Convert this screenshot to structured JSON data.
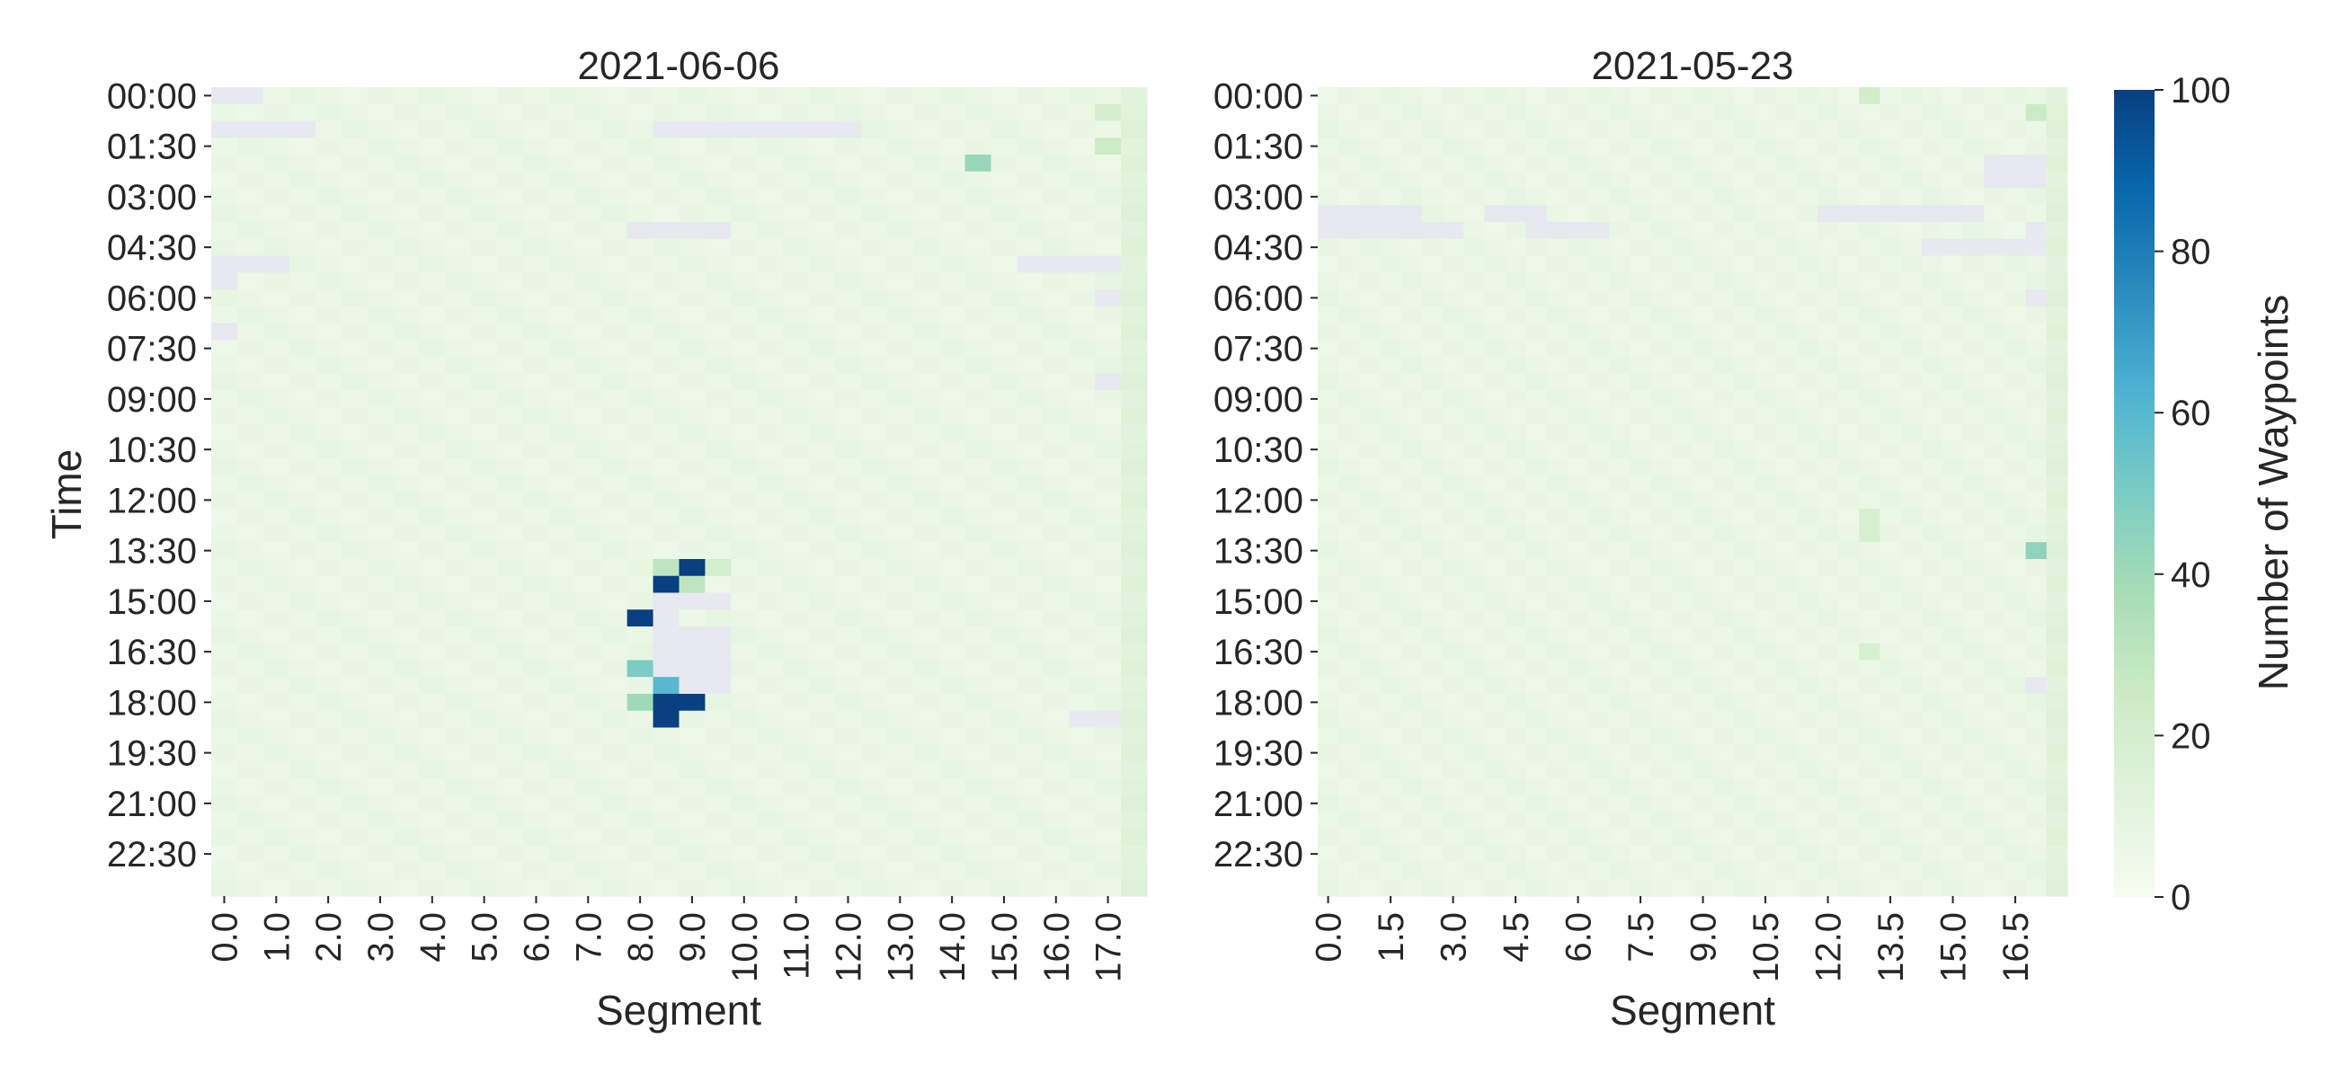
{
  "chart_data": [
    {
      "type": "heatmap",
      "title": "2021-06-06",
      "xlabel": "Segment",
      "ylabel": "Time",
      "x_tick_labels": [
        "0.0",
        "1.0",
        "2.0",
        "3.0",
        "4.0",
        "5.0",
        "6.0",
        "7.0",
        "8.0",
        "9.0",
        "10.0",
        "11.0",
        "12.0",
        "13.0",
        "14.0",
        "15.0",
        "16.0",
        "17.0"
      ],
      "y_tick_labels": [
        "00:00",
        "01:30",
        "03:00",
        "04:30",
        "06:00",
        "07:30",
        "09:00",
        "10:30",
        "12:00",
        "13:30",
        "15:00",
        "16:30",
        "18:00",
        "19:30",
        "21:00",
        "22:30"
      ],
      "x_range": [
        0.0,
        17.5
      ],
      "x_step": 0.5,
      "y_step_minutes": 30,
      "rows": 48,
      "background_level": 7,
      "empty_cells": [
        {
          "row": 0,
          "cols": [
            0.0,
            0.5
          ]
        },
        {
          "row": 2,
          "cols": [
            0.0,
            1.5
          ]
        },
        {
          "row": 2,
          "cols": [
            8.5,
            12.0
          ]
        },
        {
          "row": 8,
          "cols": [
            8.0,
            9.5
          ]
        },
        {
          "row": 10,
          "cols": [
            0.0,
            1.0
          ]
        },
        {
          "row": 10,
          "cols": [
            15.5,
            17.0
          ]
        },
        {
          "row": 11,
          "cols": [
            0.0,
            0.0
          ]
        },
        {
          "row": 12,
          "cols": [
            17.0,
            17.0
          ]
        },
        {
          "row": 14,
          "cols": [
            0.0,
            0.0
          ]
        },
        {
          "row": 17,
          "cols": [
            17.0,
            17.0
          ]
        },
        {
          "row": 30,
          "cols": [
            8.5,
            9.5
          ]
        },
        {
          "row": 31,
          "cols": [
            8.5,
            8.5
          ]
        },
        {
          "row": 32,
          "cols": [
            8.5,
            9.5
          ]
        },
        {
          "row": 33,
          "cols": [
            8.5,
            9.5
          ]
        },
        {
          "row": 34,
          "cols": [
            8.5,
            9.5
          ]
        },
        {
          "row": 35,
          "cols": [
            8.5,
            9.5
          ]
        },
        {
          "row": 37,
          "cols": [
            16.5,
            17.0
          ]
        }
      ],
      "highlighted_cells": [
        {
          "row": 1,
          "col": 17.0,
          "value": 20
        },
        {
          "row": 3,
          "col": 17.0,
          "value": 25
        },
        {
          "row": 4,
          "col": 14.5,
          "value": 42
        },
        {
          "row": 28,
          "col": 8.5,
          "value": 30
        },
        {
          "row": 28,
          "col": 9.0,
          "value": 100
        },
        {
          "row": 28,
          "col": 9.5,
          "value": 20
        },
        {
          "row": 29,
          "col": 8.5,
          "value": 100
        },
        {
          "row": 29,
          "col": 9.0,
          "value": 30
        },
        {
          "row": 31,
          "col": 8.0,
          "value": 100
        },
        {
          "row": 34,
          "col": 8.0,
          "value": 50
        },
        {
          "row": 35,
          "col": 8.5,
          "value": 60
        },
        {
          "row": 36,
          "col": 8.0,
          "value": 40
        },
        {
          "row": 36,
          "col": 8.5,
          "value": 100
        },
        {
          "row": 36,
          "col": 9.0,
          "value": 100
        },
        {
          "row": 37,
          "col": 8.5,
          "value": 100
        }
      ]
    },
    {
      "type": "heatmap",
      "title": "2021-05-23",
      "xlabel": "Segment",
      "ylabel": "",
      "x_tick_labels": [
        "0.0",
        "1.5",
        "3.0",
        "4.5",
        "6.0",
        "7.5",
        "9.0",
        "10.5",
        "12.0",
        "13.5",
        "15.0",
        "16.5"
      ],
      "y_tick_labels": [
        "00:00",
        "01:30",
        "03:00",
        "04:30",
        "06:00",
        "07:30",
        "09:00",
        "10:30",
        "12:00",
        "13:30",
        "15:00",
        "16:30",
        "18:00",
        "19:30",
        "21:00",
        "22:30"
      ],
      "x_range": [
        0.0,
        17.5
      ],
      "x_step": 0.5,
      "y_step_minutes": 30,
      "rows": 48,
      "background_level": 7,
      "empty_cells": [
        {
          "row": 4,
          "cols": [
            16.0,
            17.0
          ]
        },
        {
          "row": 5,
          "cols": [
            16.0,
            17.0
          ]
        },
        {
          "row": 7,
          "cols": [
            0.0,
            2.0
          ]
        },
        {
          "row": 7,
          "cols": [
            4.0,
            5.0
          ]
        },
        {
          "row": 7,
          "cols": [
            12.0,
            15.5
          ]
        },
        {
          "row": 8,
          "cols": [
            0.0,
            3.0
          ]
        },
        {
          "row": 8,
          "cols": [
            5.0,
            6.5
          ]
        },
        {
          "row": 8,
          "cols": [
            17.0,
            17.0
          ]
        },
        {
          "row": 9,
          "cols": [
            14.5,
            17.0
          ]
        },
        {
          "row": 12,
          "cols": [
            17.0,
            17.0
          ]
        },
        {
          "row": 35,
          "cols": [
            17.0,
            17.0
          ]
        }
      ],
      "highlighted_cells": [
        {
          "row": 0,
          "col": 13.0,
          "value": 22
        },
        {
          "row": 27,
          "col": 17.0,
          "value": 45
        },
        {
          "row": 25,
          "col": 13.0,
          "value": 18
        },
        {
          "row": 26,
          "col": 13.0,
          "value": 18
        },
        {
          "row": 33,
          "col": 13.0,
          "value": 18
        },
        {
          "row": 1,
          "col": 17.0,
          "value": 25
        }
      ]
    }
  ],
  "colorbar": {
    "label": "Number of Waypoints",
    "ticks": [
      "0",
      "20",
      "40",
      "60",
      "80",
      "100"
    ],
    "range": [
      0,
      100
    ],
    "colors": [
      "#f7fcf0",
      "#e0f3db",
      "#ccebc5",
      "#a8ddb5",
      "#7bccc4",
      "#4eb3d3",
      "#2b8cbe",
      "#0868ac",
      "#084081"
    ],
    "empty_color": "#e8e8f0"
  }
}
